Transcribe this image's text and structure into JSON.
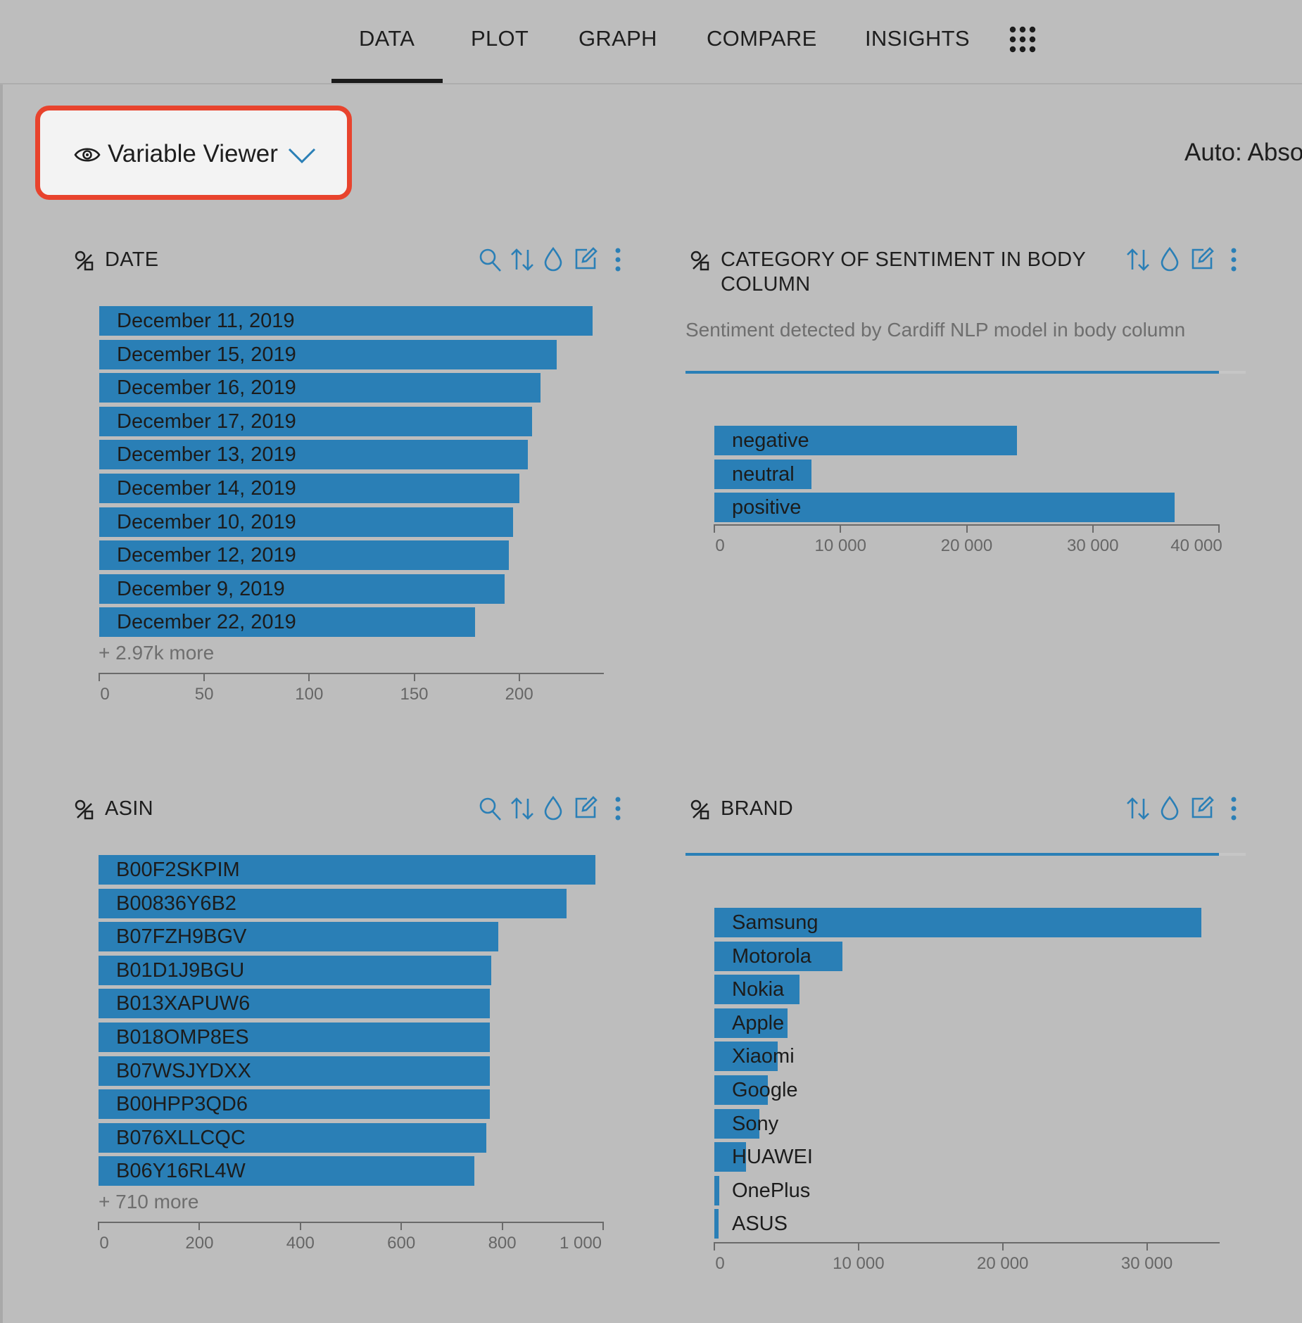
{
  "nav": {
    "tabs": [
      "DATA",
      "PLOT",
      "GRAPH",
      "COMPARE",
      "INSIGHTS"
    ],
    "active_tab": "DATA",
    "apps_icon": "grid-icon"
  },
  "toolbar": {
    "viewer_label": "Variable Viewer",
    "viewer_icon": "eye-icon",
    "mode_label": "Auto: Abso"
  },
  "colors": {
    "bar": "#2a7fb6",
    "highlight": "#e8432d",
    "background": "#bdbdbd"
  },
  "panels": {
    "date": {
      "title": "DATE",
      "more": "+ 2.97k more",
      "icons": [
        "search-icon",
        "sort-icon",
        "color-drop-icon",
        "edit-icon",
        "more-icon"
      ]
    },
    "sentiment": {
      "title_line1": "CATEGORY OF SENTIMENT IN BODY",
      "title_line2": "COLUMN",
      "subtitle": "Sentiment detected by Cardiff NLP model in body column",
      "completeness": 1.0,
      "icons": [
        "sort-icon",
        "color-drop-icon",
        "edit-icon",
        "more-icon"
      ]
    },
    "asin": {
      "title": "ASIN",
      "more": "+ 710 more",
      "icons": [
        "search-icon",
        "sort-icon",
        "color-drop-icon",
        "edit-icon",
        "more-icon"
      ]
    },
    "brand": {
      "title": "BRAND",
      "completeness": 1.0,
      "icons": [
        "sort-icon",
        "color-drop-icon",
        "edit-icon",
        "more-icon"
      ]
    }
  },
  "chart_data": [
    {
      "id": "date",
      "type": "bar",
      "orientation": "horizontal",
      "categories": [
        "December 11, 2019",
        "December 15, 2019",
        "December 16, 2019",
        "December 17, 2019",
        "December 13, 2019",
        "December 14, 2019",
        "December 10, 2019",
        "December 12, 2019",
        "December 9, 2019",
        "December 22, 2019"
      ],
      "values": [
        235,
        218,
        210,
        206,
        204,
        200,
        197,
        195,
        193,
        179
      ],
      "xlim": [
        0,
        240
      ],
      "ticks": [
        0,
        50,
        100,
        150,
        200
      ],
      "tick_labels": [
        "0",
        "50",
        "100",
        "150",
        "200"
      ]
    },
    {
      "id": "sentiment",
      "type": "bar",
      "orientation": "horizontal",
      "categories": [
        "negative",
        "neutral",
        "positive"
      ],
      "values": [
        24000,
        7700,
        36500
      ],
      "xlim": [
        0,
        40000
      ],
      "ticks": [
        0,
        10000,
        20000,
        30000,
        40000
      ],
      "tick_labels": [
        "0",
        "10 000",
        "20 000",
        "30 000",
        "40 000"
      ]
    },
    {
      "id": "asin",
      "type": "bar",
      "orientation": "horizontal",
      "categories": [
        "B00F2SKPIM",
        "B00836Y6B2",
        "B07FZH9BGV",
        "B01D1J9BGU",
        "B013XAPUW6",
        "B018OMP8ES",
        "B07WSJYDXX",
        "B00HPP3QD6",
        "B076XLLCQC",
        "B06Y16RL4W"
      ],
      "values": [
        985,
        928,
        792,
        778,
        775,
        775,
        775,
        775,
        768,
        745
      ],
      "xlim": [
        0,
        1000
      ],
      "ticks": [
        0,
        200,
        400,
        600,
        800,
        1000
      ],
      "tick_labels": [
        "0",
        "200",
        "400",
        "600",
        "800",
        "1 000"
      ]
    },
    {
      "id": "brand",
      "type": "bar",
      "orientation": "horizontal",
      "categories": [
        "Samsung",
        "Motorola",
        "Nokia",
        "Apple",
        "Xiaomi",
        "Google",
        "Sony",
        "HUAWEI",
        "OnePlus",
        "ASUS"
      ],
      "values": [
        33800,
        8900,
        5900,
        5100,
        4400,
        3700,
        3100,
        2200,
        350,
        280
      ],
      "xlim": [
        0,
        35000
      ],
      "ticks": [
        0,
        10000,
        20000,
        30000
      ],
      "tick_labels": [
        "0",
        "10 000",
        "20 000",
        "30 000"
      ]
    }
  ]
}
